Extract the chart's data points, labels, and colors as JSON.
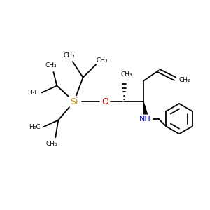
{
  "background_color": "#ffffff",
  "bond_color": "#000000",
  "si_color": "#c8960c",
  "o_color": "#cc0000",
  "n_color": "#0000cc",
  "figsize": [
    3.0,
    3.0
  ],
  "dpi": 100,
  "xlim": [
    0,
    300
  ],
  "ylim": [
    0,
    300
  ]
}
